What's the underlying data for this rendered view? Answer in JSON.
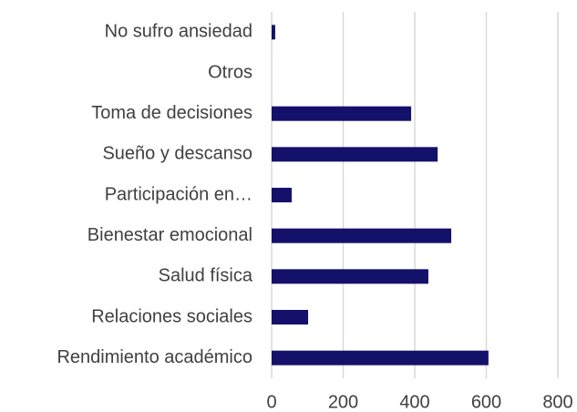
{
  "chart_data": {
    "type": "bar",
    "orientation": "horizontal",
    "categories": [
      "No sufro ansiedad",
      "Otros",
      "Toma de decisiones",
      "Sueño y descanso",
      "Participación en…",
      "Bienestar emocional",
      "Salud física",
      "Relaciones sociales",
      "Rendimiento académico"
    ],
    "values": [
      10,
      0,
      390,
      464,
      56,
      502,
      438,
      102,
      606
    ],
    "color": "#14116b",
    "xlim": [
      0,
      800
    ],
    "xticks": [
      0,
      200,
      400,
      600,
      800
    ],
    "grid": true
  }
}
